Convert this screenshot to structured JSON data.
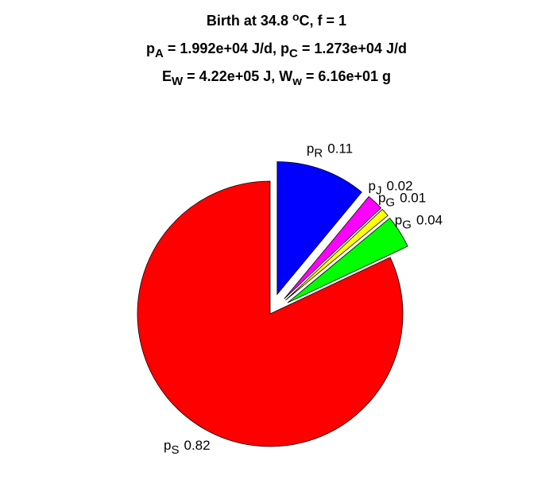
{
  "chart_data": {
    "type": "pie",
    "title": [
      [
        {
          "text": "Birth at 34.8 "
        },
        {
          "text": "o",
          "style": "sup"
        },
        {
          "text": "C, f = 1"
        }
      ],
      [
        {
          "text": "p"
        },
        {
          "text": "A",
          "style": "sub"
        },
        {
          "text": " = 1.992e+04 J/d, p"
        },
        {
          "text": "C",
          "style": "sub"
        },
        {
          "text": " = 1.273e+04 J/d"
        }
      ],
      [
        {
          "text": "E"
        },
        {
          "text": "W",
          "style": "sub"
        },
        {
          "text": " = 4.22e+05 J, W"
        },
        {
          "text": "w",
          "style": "sub"
        },
        {
          "text": " = 6.16e+01 g"
        }
      ]
    ],
    "categories": [
      {
        "symbol": "p",
        "subscript": "R"
      },
      {
        "symbol": "p",
        "subscript": "J"
      },
      {
        "symbol": "p",
        "subscript": "G"
      },
      {
        "symbol": "p",
        "subscript": "G"
      },
      {
        "symbol": "p",
        "subscript": "S"
      }
    ],
    "values": [
      0.11,
      0.02,
      0.01,
      0.04,
      0.82
    ],
    "colors": [
      "#0000ff",
      "#ff00ff",
      "#ffff00",
      "#00ff00",
      "#ff0000"
    ],
    "explode": [
      true,
      true,
      true,
      true,
      false
    ]
  }
}
